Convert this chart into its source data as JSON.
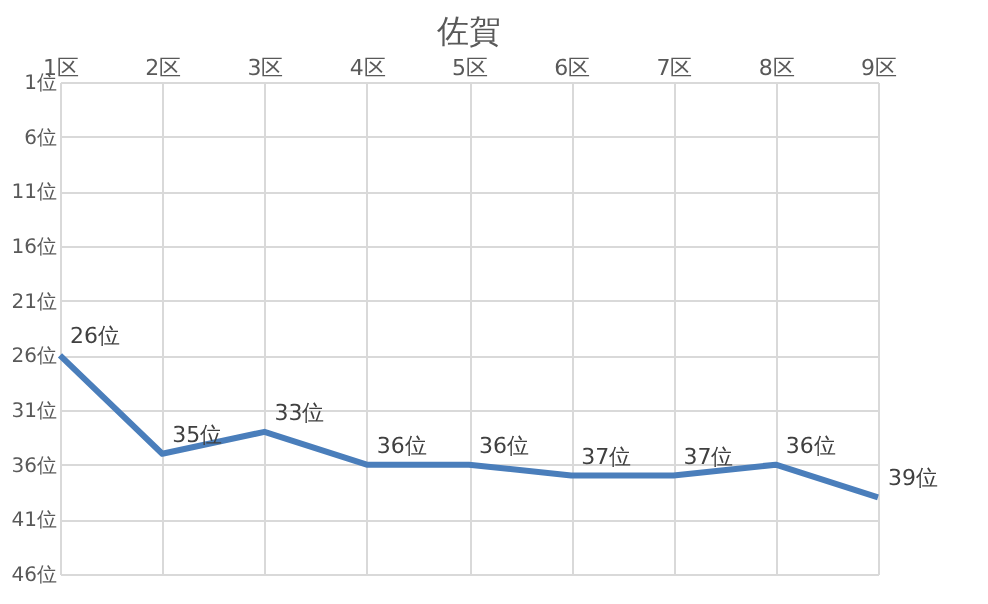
{
  "chart_data": {
    "type": "line",
    "title": "佐賀",
    "categories": [
      "1区",
      "2区",
      "3区",
      "4区",
      "5区",
      "6区",
      "7区",
      "8区",
      "9区"
    ],
    "series": [
      {
        "color": "#4a7ebb",
        "values": [
          26,
          35,
          33,
          36,
          36,
          37,
          37,
          36,
          39
        ],
        "value_labels": [
          "26位",
          "35位",
          "33位",
          "36位",
          "36位",
          "37位",
          "37位",
          "36位",
          "39位"
        ]
      }
    ],
    "ylim": [
      46,
      1
    ],
    "yticks": [
      {
        "value": 1,
        "label": "1位"
      },
      {
        "value": 6,
        "label": "6位"
      },
      {
        "value": 11,
        "label": "11位"
      },
      {
        "value": 16,
        "label": "16位"
      },
      {
        "value": 21,
        "label": "21位"
      },
      {
        "value": 26,
        "label": "26位"
      },
      {
        "value": 31,
        "label": "31位"
      },
      {
        "value": 36,
        "label": "36位"
      },
      {
        "value": 41,
        "label": "41位"
      },
      {
        "value": 46,
        "label": "46位"
      }
    ],
    "grid": true,
    "marker": "none",
    "line_style": "solid"
  }
}
